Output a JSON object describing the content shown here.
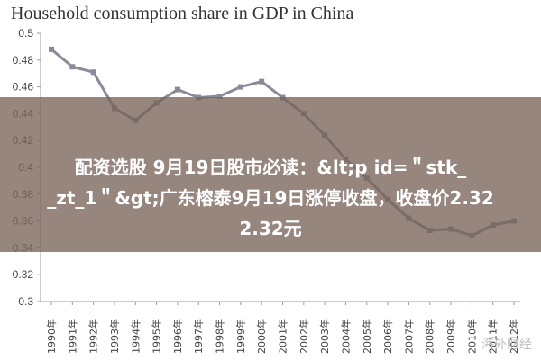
{
  "chart_data": {
    "type": "line",
    "title": "Household consumption share in GDP in China",
    "x": [
      "1990年",
      "1991年",
      "1992年",
      "1993年",
      "1994年",
      "1995年",
      "1996年",
      "1997年",
      "1998年",
      "1999年",
      "2000年",
      "2001年",
      "2002年",
      "2003年",
      "2004年",
      "2005年",
      "2006年",
      "2007年",
      "2008年",
      "2009年",
      "2010年",
      "2011年",
      "2012年"
    ],
    "values": [
      0.488,
      0.475,
      0.471,
      0.444,
      0.435,
      0.448,
      0.458,
      0.452,
      0.453,
      0.46,
      0.464,
      0.452,
      0.44,
      0.424,
      0.406,
      0.392,
      0.376,
      0.362,
      0.353,
      0.354,
      0.349,
      0.357,
      0.36
    ],
    "y_ticks": [
      "0.5",
      "0.48",
      "0.46",
      "0.44",
      "0.42",
      "0.4",
      "0.38",
      "0.36",
      "0.34",
      "0.32",
      "0.3"
    ],
    "ylim": [
      0.3,
      0.5
    ],
    "grid": false,
    "colors": {
      "line": "#8a8a9a",
      "marker": "#8a8a9a"
    }
  },
  "overlay": {
    "line1": "配资选股 9月19日股市必读：&lt;p id=＂stk_",
    "line2": "_zt_1＂&gt;广东榕泰9月19日涨停收盘，收盘价2.32",
    "line3": "2.32元"
  },
  "watermark": "海外财经"
}
